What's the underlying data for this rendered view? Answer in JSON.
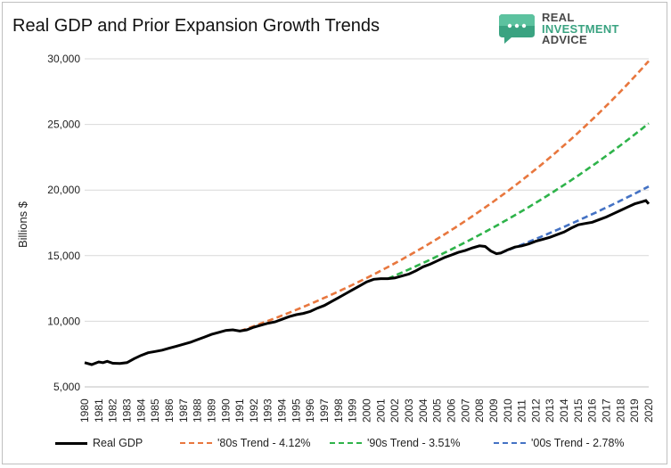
{
  "header": {
    "title": "Real GDP and Prior Expansion Growth Trends"
  },
  "logo": {
    "line1": "REAL",
    "line2": "INVESTMENT",
    "line3": "ADVICE",
    "icon": "chat-bubble-icon",
    "brand_color": "#3aa381"
  },
  "chart_data": {
    "type": "line",
    "title": "Real GDP and Prior Expansion Growth Trends",
    "xlabel": "",
    "ylabel": "Billions $",
    "xlim": [
      1980,
      2020
    ],
    "ylim": [
      5000,
      30000
    ],
    "yticks": [
      5000,
      10000,
      15000,
      20000,
      25000,
      30000
    ],
    "ytick_labels": [
      "5,000",
      "10,000",
      "15,000",
      "20,000",
      "25,000",
      "30,000"
    ],
    "xticks": [
      "1980",
      "1981",
      "1982",
      "1983",
      "1984",
      "1985",
      "1986",
      "1987",
      "1988",
      "1989",
      "1990",
      "1991",
      "1992",
      "1993",
      "1994",
      "1995",
      "1996",
      "1997",
      "1998",
      "1999",
      "2000",
      "2001",
      "2002",
      "2003",
      "2004",
      "2005",
      "2006",
      "2007",
      "2008",
      "2009",
      "2010",
      "2011",
      "2012",
      "2013",
      "2014",
      "2015",
      "2016",
      "2017",
      "2018",
      "2019",
      "2020"
    ],
    "grid": "horizontal",
    "legend_position": "bottom",
    "series": [
      {
        "name": "Real GDP",
        "color": "#000000",
        "style": "solid",
        "points": [
          [
            1980.0,
            6850
          ],
          [
            1980.5,
            6700
          ],
          [
            1981.0,
            6900
          ],
          [
            1981.3,
            6850
          ],
          [
            1981.6,
            6950
          ],
          [
            1982.0,
            6800
          ],
          [
            1982.5,
            6780
          ],
          [
            1983.0,
            6850
          ],
          [
            1983.5,
            7150
          ],
          [
            1984.0,
            7400
          ],
          [
            1984.5,
            7600
          ],
          [
            1985.0,
            7700
          ],
          [
            1985.5,
            7800
          ],
          [
            1986.0,
            7950
          ],
          [
            1986.5,
            8100
          ],
          [
            1987.0,
            8250
          ],
          [
            1987.5,
            8400
          ],
          [
            1988.0,
            8600
          ],
          [
            1988.5,
            8800
          ],
          [
            1989.0,
            9000
          ],
          [
            1989.5,
            9150
          ],
          [
            1990.0,
            9300
          ],
          [
            1990.5,
            9350
          ],
          [
            1991.0,
            9250
          ],
          [
            1991.5,
            9350
          ],
          [
            1992.0,
            9550
          ],
          [
            1992.5,
            9700
          ],
          [
            1993.0,
            9850
          ],
          [
            1993.5,
            9950
          ],
          [
            1994.0,
            10150
          ],
          [
            1994.5,
            10350
          ],
          [
            1995.0,
            10500
          ],
          [
            1995.5,
            10600
          ],
          [
            1996.0,
            10750
          ],
          [
            1996.5,
            11000
          ],
          [
            1997.0,
            11200
          ],
          [
            1997.5,
            11500
          ],
          [
            1998.0,
            11800
          ],
          [
            1998.5,
            12100
          ],
          [
            1999.0,
            12400
          ],
          [
            1999.5,
            12700
          ],
          [
            2000.0,
            13000
          ],
          [
            2000.5,
            13200
          ],
          [
            2001.0,
            13250
          ],
          [
            2001.5,
            13250
          ],
          [
            2002.0,
            13300
          ],
          [
            2002.5,
            13450
          ],
          [
            2003.0,
            13600
          ],
          [
            2003.5,
            13850
          ],
          [
            2004.0,
            14150
          ],
          [
            2004.5,
            14350
          ],
          [
            2005.0,
            14600
          ],
          [
            2005.5,
            14850
          ],
          [
            2006.0,
            15050
          ],
          [
            2006.5,
            15250
          ],
          [
            2007.0,
            15400
          ],
          [
            2007.5,
            15600
          ],
          [
            2008.0,
            15750
          ],
          [
            2008.4,
            15700
          ],
          [
            2008.8,
            15350
          ],
          [
            2009.2,
            15150
          ],
          [
            2009.5,
            15200
          ],
          [
            2010.0,
            15450
          ],
          [
            2010.5,
            15650
          ],
          [
            2011.0,
            15750
          ],
          [
            2011.5,
            15900
          ],
          [
            2012.0,
            16100
          ],
          [
            2012.5,
            16250
          ],
          [
            2013.0,
            16400
          ],
          [
            2013.5,
            16600
          ],
          [
            2014.0,
            16800
          ],
          [
            2014.5,
            17100
          ],
          [
            2015.0,
            17350
          ],
          [
            2015.5,
            17450
          ],
          [
            2016.0,
            17550
          ],
          [
            2016.5,
            17750
          ],
          [
            2017.0,
            17950
          ],
          [
            2017.5,
            18200
          ],
          [
            2018.0,
            18450
          ],
          [
            2018.5,
            18700
          ],
          [
            2019.0,
            18950
          ],
          [
            2019.5,
            19100
          ],
          [
            2019.8,
            19200
          ],
          [
            2020.0,
            18950
          ]
        ]
      },
      {
        "name": "'80s Trend - 4.12%",
        "color": "#e8773e",
        "style": "dashed",
        "start": [
          1991.0,
          9250
        ],
        "growth_rate": 0.0412,
        "end_x": 2020.0
      },
      {
        "name": "'90s Trend - 3.51%",
        "color": "#2eb34a",
        "style": "dashed",
        "start": [
          2001.5,
          13250
        ],
        "growth_rate": 0.0351,
        "end_x": 2020.0
      },
      {
        "name": "'00s Trend - 2.78%",
        "color": "#4472c4",
        "style": "dashed",
        "start": [
          2009.5,
          15200
        ],
        "growth_rate": 0.0278,
        "end_x": 2020.0
      }
    ]
  }
}
